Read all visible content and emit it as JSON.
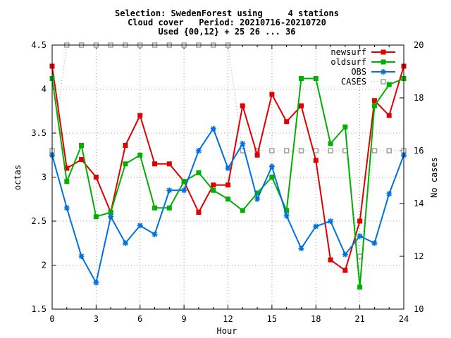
{
  "chart_data": {
    "type": "line",
    "title_lines": [
      "Selection: SwedenForest using     4 stations",
      "Cloud cover   Period: 20210716-20210720",
      "Used {00,12} + 25 26 ... 36"
    ],
    "xlabel": "Hour",
    "ylabel": "octas",
    "y2label": "No cases",
    "xlim": [
      0,
      24
    ],
    "ylim": [
      1.5,
      4.5
    ],
    "y2lim": [
      10,
      20
    ],
    "xticks": [
      "0",
      "3",
      "6",
      "9",
      "12",
      "15",
      "18",
      "21",
      "24"
    ],
    "yticks": [
      "1.5",
      "2",
      "2.5",
      "3",
      "3.5",
      "4",
      "4.5"
    ],
    "y2ticks": [
      "10",
      "12",
      "14",
      "16",
      "18",
      "20"
    ],
    "grid": true,
    "legend_position": "top-right",
    "x": [
      0,
      1,
      2,
      3,
      4,
      5,
      6,
      7,
      8,
      9,
      10,
      11,
      12,
      13,
      14,
      15,
      16,
      17,
      18,
      19,
      20,
      21,
      22,
      23,
      24
    ],
    "series": [
      {
        "name": "newsurf",
        "color": "#e00000",
        "axis": "left",
        "marker": "square",
        "values": [
          4.26,
          3.1,
          3.2,
          3.0,
          2.6,
          3.36,
          3.7,
          3.15,
          3.15,
          2.95,
          2.6,
          2.91,
          2.91,
          3.81,
          3.25,
          3.94,
          3.63,
          3.81,
          3.19,
          2.06,
          1.94,
          2.5,
          3.87,
          3.7,
          4.26
        ]
      },
      {
        "name": "oldsurf",
        "color": "#00b000",
        "axis": "left",
        "marker": "square",
        "values": [
          4.12,
          2.95,
          3.36,
          2.55,
          2.6,
          3.15,
          3.25,
          2.65,
          2.65,
          2.95,
          3.05,
          2.85,
          2.75,
          2.62,
          2.82,
          3.0,
          2.62,
          4.12,
          4.12,
          3.38,
          3.57,
          1.75,
          3.81,
          4.05,
          4.12
        ]
      },
      {
        "name": "OBS",
        "color": "#0070e0",
        "axis": "left",
        "marker": "star",
        "values": [
          3.25,
          2.65,
          2.1,
          1.8,
          2.55,
          2.25,
          2.45,
          2.35,
          2.85,
          2.85,
          3.3,
          3.55,
          3.1,
          3.38,
          2.75,
          3.12,
          2.56,
          2.19,
          2.44,
          2.5,
          2.12,
          2.33,
          2.25,
          2.81,
          3.25
        ]
      },
      {
        "name": "CASES",
        "color": "#a0a0a0",
        "axis": "right",
        "marker": "open-square",
        "dashed": true,
        "values": [
          16,
          20,
          20,
          20,
          20,
          20,
          20,
          20,
          20,
          20,
          20,
          20,
          20,
          16,
          16,
          16,
          16,
          16,
          16,
          16,
          16,
          12,
          16,
          16,
          16
        ]
      }
    ]
  }
}
